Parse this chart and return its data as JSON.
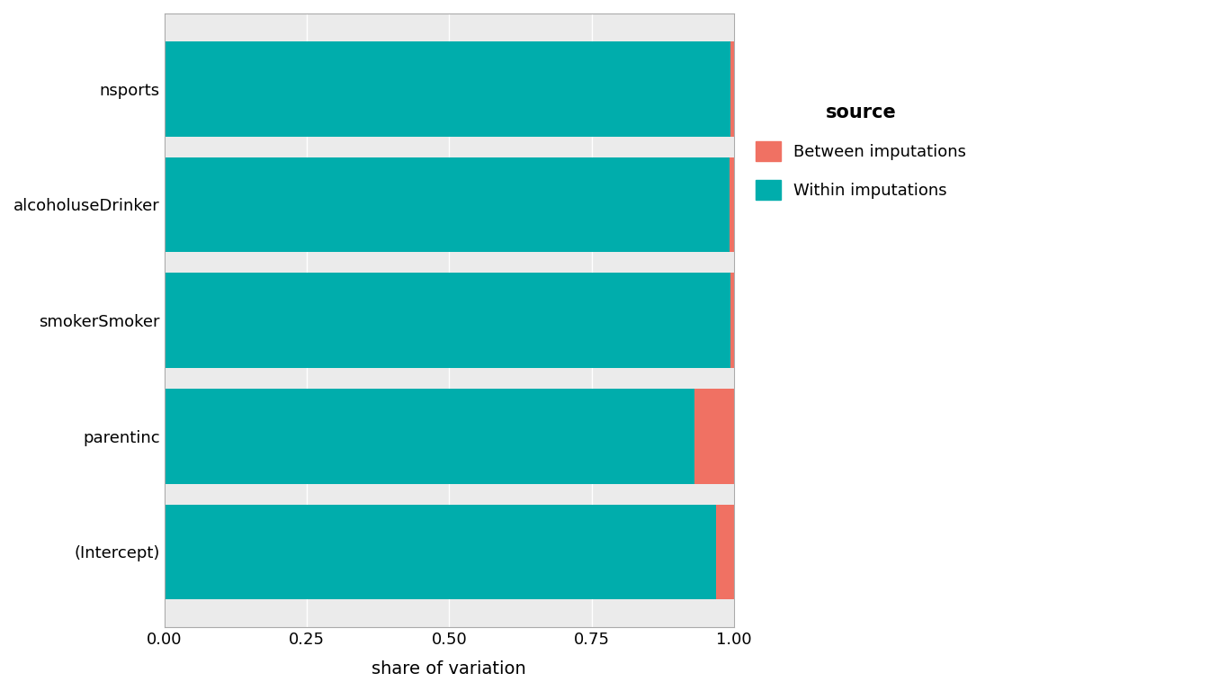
{
  "categories": [
    "(Intercept)",
    "parentinc",
    "smokerSmoker",
    "alcoholuseDrinker",
    "nsports"
  ],
  "within": [
    0.968,
    0.93,
    0.993,
    0.992,
    0.993
  ],
  "between": [
    0.032,
    0.07,
    0.007,
    0.008,
    0.007
  ],
  "color_between": "#F07163",
  "color_within": "#00ADAC",
  "xlabel": "share of variation",
  "legend_title": "source",
  "legend_labels": [
    "Between imputations",
    "Within imputations"
  ],
  "background_color": "#FFFFFF",
  "panel_background": "#EBEBEB",
  "grid_color": "#FFFFFF",
  "bar_height": 0.82,
  "xlim": [
    0,
    1.0
  ],
  "xticks": [
    0.0,
    0.25,
    0.5,
    0.75,
    1.0
  ],
  "xtick_labels": [
    "0.00",
    "0.25",
    "0.50",
    "0.75",
    "1.00"
  ]
}
